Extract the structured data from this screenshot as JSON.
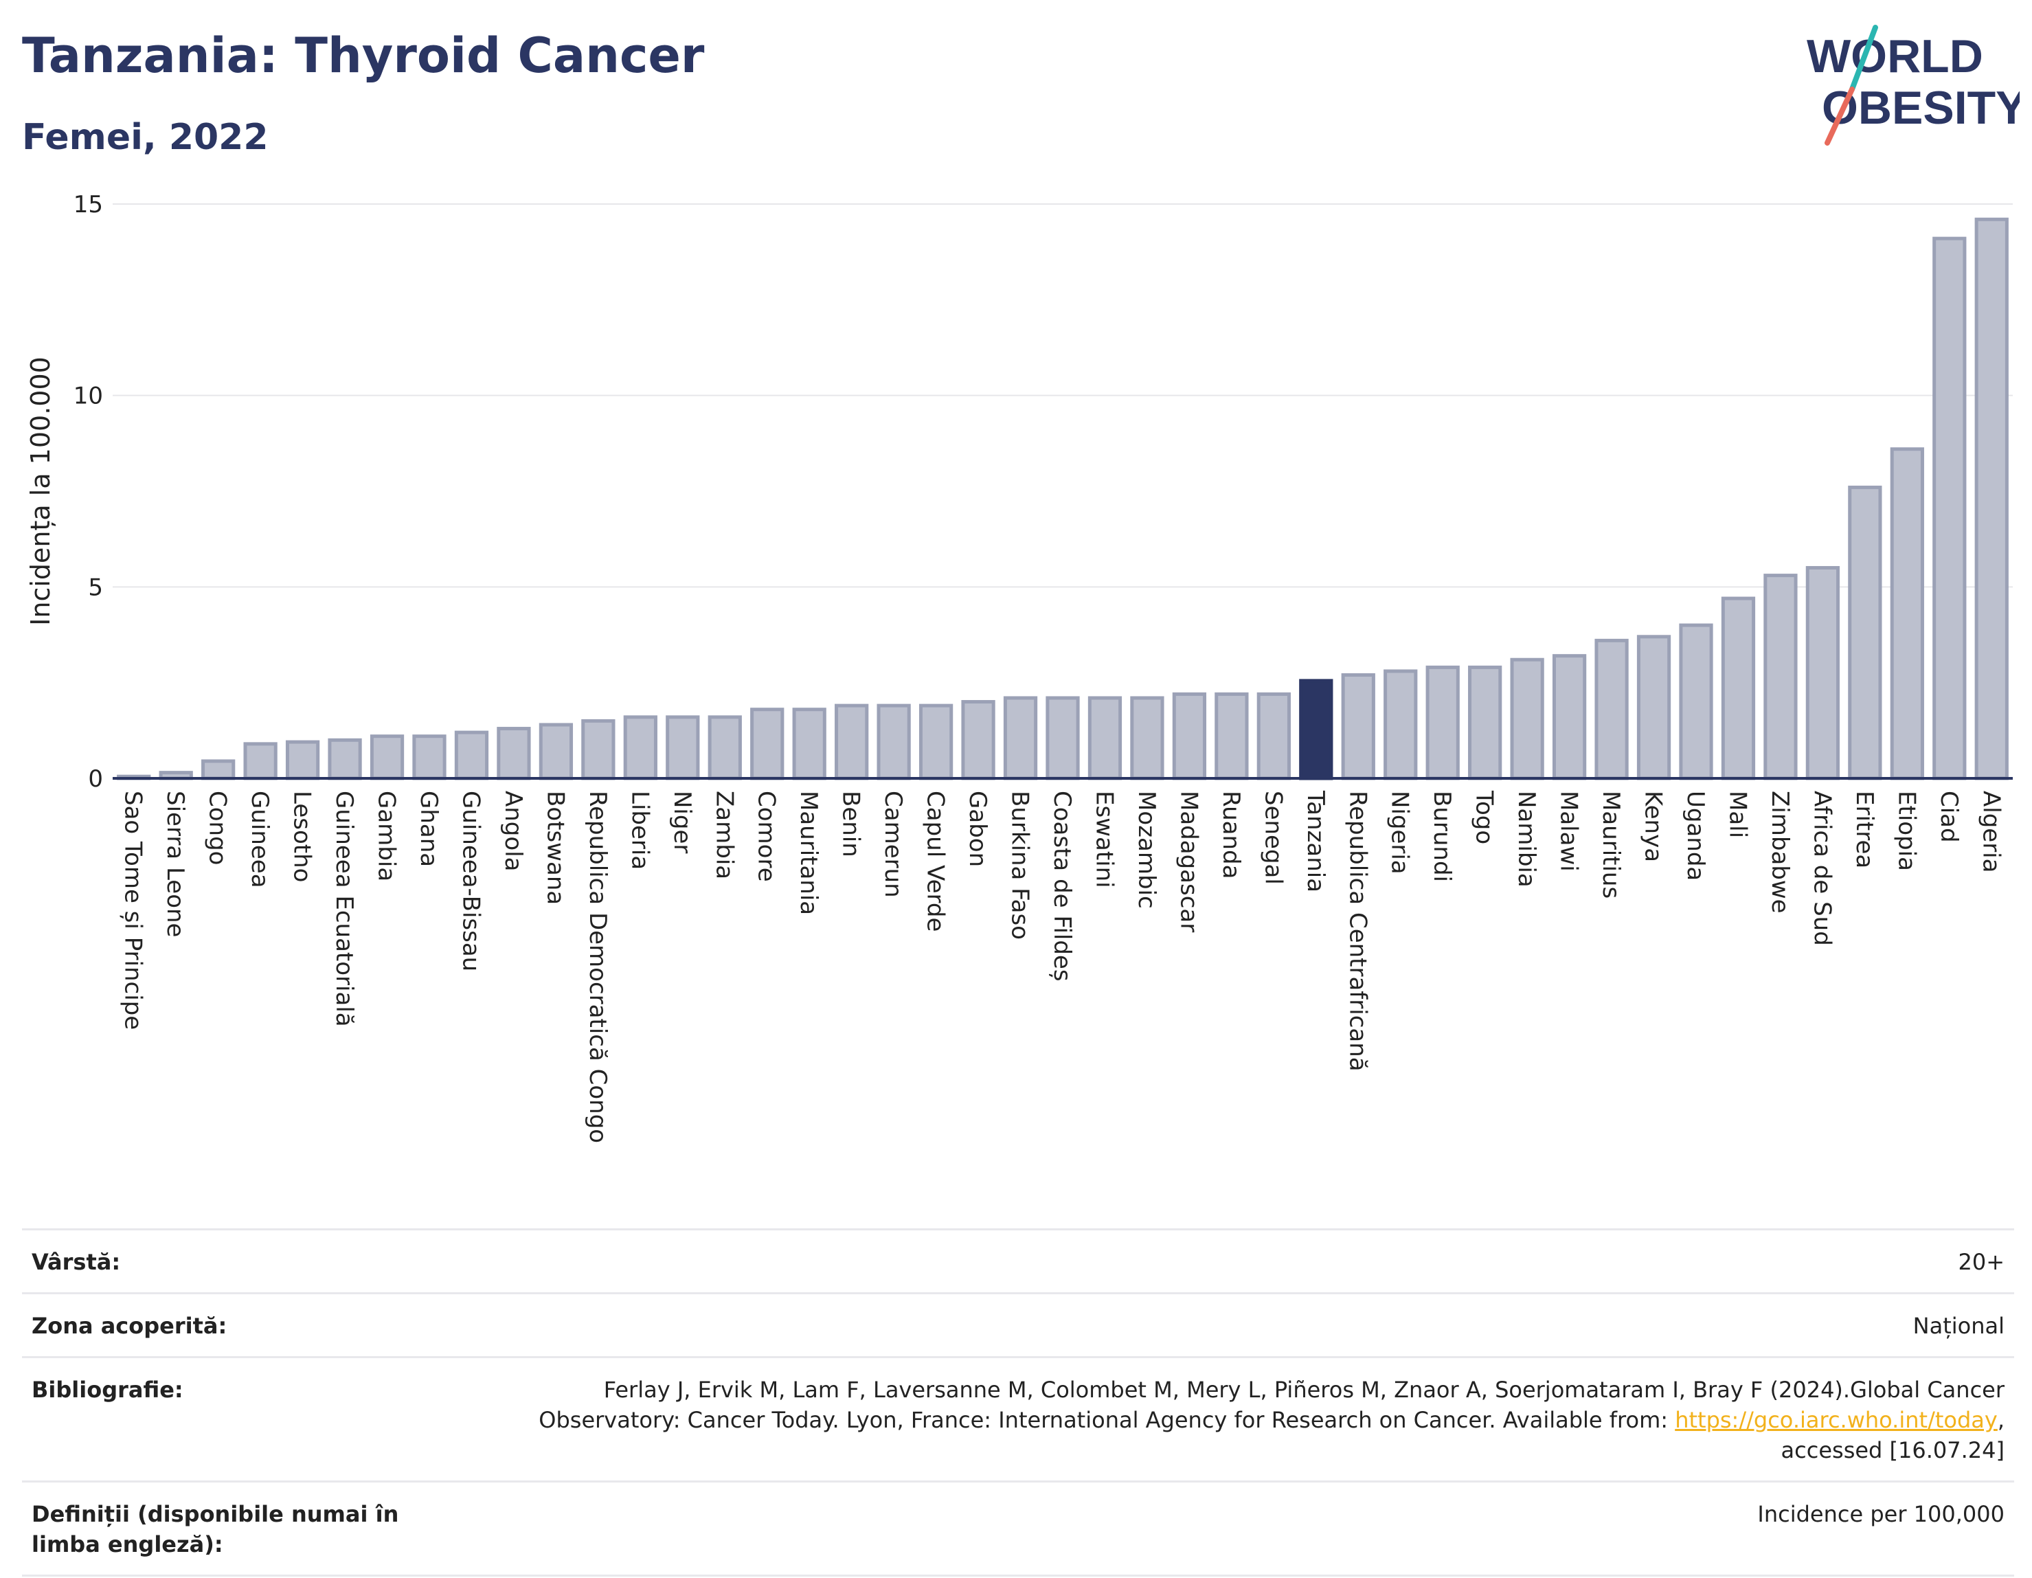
{
  "header": {
    "title": "Tanzania: Thyroid Cancer",
    "subtitle": "Femei, 2022"
  },
  "logo": {
    "line1": "WORLD",
    "line2": "OBESITY",
    "colors": {
      "text": "#2b3663",
      "slash_top": "#2bb6b1",
      "slash_bottom": "#e86a5b"
    }
  },
  "chart_data": {
    "type": "bar",
    "title": "Tanzania: Thyroid Cancer",
    "subtitle": "Femei, 2022",
    "xlabel": "",
    "ylabel": "Incidența la 100.000",
    "ylim": [
      0,
      15
    ],
    "yticks": [
      0,
      5,
      10,
      15
    ],
    "grid": true,
    "highlight": "Tanzania",
    "colors": {
      "bar": "#bcc0ce",
      "bar_edge": "#9ba1b6",
      "highlight": "#2b3663",
      "grid": "#e6e6ea"
    },
    "categories": [
      "Sao Tome și Principe",
      "Sierra Leone",
      "Congo",
      "Guineea",
      "Lesotho",
      "Guineea Ecuatorială",
      "Gambia",
      "Ghana",
      "Guineea-Bissau",
      "Angola",
      "Botswana",
      "Republica Democratică Congo",
      "Liberia",
      "Niger",
      "Zambia",
      "Comore",
      "Mauritania",
      "Benin",
      "Camerun",
      "Capul Verde",
      "Gabon",
      "Burkina Faso",
      "Coasta de Fildeș",
      "Eswatini",
      "Mozambic",
      "Madagascar",
      "Ruanda",
      "Senegal",
      "Tanzania",
      "Republica Centrafricană",
      "Nigeria",
      "Burundi",
      "Togo",
      "Namibia",
      "Malawi",
      "Mauritius",
      "Kenya",
      "Uganda",
      "Mali",
      "Zimbabwe",
      "Africa de Sud",
      "Eritrea",
      "Etiopia",
      "Ciad",
      "Algeria"
    ],
    "values": [
      0.05,
      0.15,
      0.45,
      0.9,
      0.95,
      1.0,
      1.1,
      1.1,
      1.2,
      1.3,
      1.4,
      1.5,
      1.6,
      1.6,
      1.6,
      1.8,
      1.8,
      1.9,
      1.9,
      1.9,
      2.0,
      2.1,
      2.1,
      2.1,
      2.1,
      2.2,
      2.2,
      2.2,
      2.55,
      2.7,
      2.8,
      2.9,
      2.9,
      3.1,
      3.2,
      3.6,
      3.7,
      4.0,
      4.7,
      5.3,
      5.5,
      7.6,
      8.6,
      14.1,
      14.6
    ]
  },
  "meta": {
    "age_label": "Vârstă:",
    "age_value": "20+",
    "coverage_label": "Zona acoperită:",
    "coverage_value": "Național",
    "bib_label": "Bibliografie:",
    "bib_text_1": "Ferlay J, Ervik M, Lam F, Laversanne M, Colombet M, Mery L, Piñeros M, Znaor A, Soerjomataram I, Bray F (2024).Global Cancer Observatory: Cancer Today. Lyon, France: International Agency for Research on Cancer. Available from: ",
    "bib_link": "https://gco.iarc.who.int/today",
    "bib_text_2": ", accessed [16.07.24]",
    "def_label": "Definiții (disponibile numai în limba engleză):",
    "def_value": "Incidence per 100,000"
  }
}
